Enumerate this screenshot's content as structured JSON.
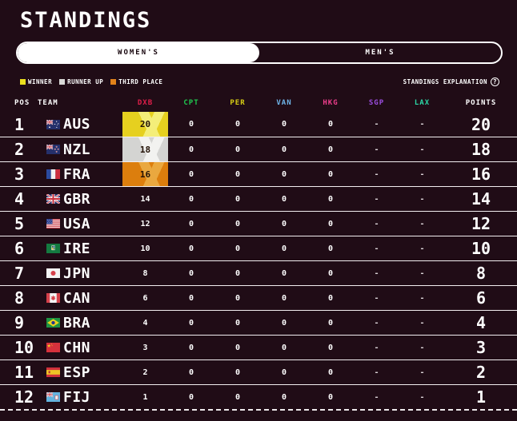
{
  "header": {
    "title": "STANDINGS"
  },
  "tabs": {
    "women": {
      "label": "WOMEN'S",
      "selected": true
    },
    "men": {
      "label": "MEN'S",
      "selected": false
    }
  },
  "legend": [
    {
      "key": "winner",
      "label": "WINNER",
      "color": "#ecdf1e"
    },
    {
      "key": "runner_up",
      "label": "RUNNER UP",
      "color": "#d9d9d7"
    },
    {
      "key": "third_place",
      "label": "THIRD PLACE",
      "color": "#e2821a"
    }
  ],
  "explanation": {
    "label": "STANDINGS EXPLANATION",
    "icon": "?"
  },
  "table": {
    "columns": [
      {
        "key": "pos",
        "label": "POS",
        "color": "#ffffff"
      },
      {
        "key": "team",
        "label": "TEAM",
        "color": "#ffffff"
      },
      {
        "key": "dxb",
        "label": "DXB",
        "color": "#e11e4a"
      },
      {
        "key": "cpt",
        "label": "CPT",
        "color": "#1fca50"
      },
      {
        "key": "per",
        "label": "PER",
        "color": "#d8cf14"
      },
      {
        "key": "van",
        "label": "VAN",
        "color": "#6fb5e9"
      },
      {
        "key": "hkg",
        "label": "HKG",
        "color": "#ef3e8d"
      },
      {
        "key": "sgp",
        "label": "SGP",
        "color": "#9d4ee2"
      },
      {
        "key": "lax",
        "label": "LAX",
        "color": "#2bd8a6"
      },
      {
        "key": "points",
        "label": "POINTS",
        "color": "#ffffff"
      }
    ],
    "highlights": {
      "winner": {
        "base": "#e6d01f",
        "streak": "#f4ee79"
      },
      "runner_up": {
        "base": "#d4d4d2",
        "streak": "#f2f2f0"
      },
      "third_place": {
        "base": "#dc7e0d",
        "streak": "#eaa83f"
      }
    },
    "rows": [
      {
        "pos": "1",
        "team": "AUS",
        "dxb": "20",
        "cpt": "0",
        "per": "0",
        "van": "0",
        "hkg": "0",
        "sgp": "-",
        "lax": "-",
        "points": "20",
        "highlight": "winner"
      },
      {
        "pos": "2",
        "team": "NZL",
        "dxb": "18",
        "cpt": "0",
        "per": "0",
        "van": "0",
        "hkg": "0",
        "sgp": "-",
        "lax": "-",
        "points": "18",
        "highlight": "runner_up"
      },
      {
        "pos": "3",
        "team": "FRA",
        "dxb": "16",
        "cpt": "0",
        "per": "0",
        "van": "0",
        "hkg": "0",
        "sgp": "-",
        "lax": "-",
        "points": "16",
        "highlight": "third_place"
      },
      {
        "pos": "4",
        "team": "GBR",
        "dxb": "14",
        "cpt": "0",
        "per": "0",
        "van": "0",
        "hkg": "0",
        "sgp": "-",
        "lax": "-",
        "points": "14",
        "highlight": null
      },
      {
        "pos": "5",
        "team": "USA",
        "dxb": "12",
        "cpt": "0",
        "per": "0",
        "van": "0",
        "hkg": "0",
        "sgp": "-",
        "lax": "-",
        "points": "12",
        "highlight": null
      },
      {
        "pos": "6",
        "team": "IRE",
        "dxb": "10",
        "cpt": "0",
        "per": "0",
        "van": "0",
        "hkg": "0",
        "sgp": "-",
        "lax": "-",
        "points": "10",
        "highlight": null
      },
      {
        "pos": "7",
        "team": "JPN",
        "dxb": "8",
        "cpt": "0",
        "per": "0",
        "van": "0",
        "hkg": "0",
        "sgp": "-",
        "lax": "-",
        "points": "8",
        "highlight": null
      },
      {
        "pos": "8",
        "team": "CAN",
        "dxb": "6",
        "cpt": "0",
        "per": "0",
        "van": "0",
        "hkg": "0",
        "sgp": "-",
        "lax": "-",
        "points": "6",
        "highlight": null
      },
      {
        "pos": "9",
        "team": "BRA",
        "dxb": "4",
        "cpt": "0",
        "per": "0",
        "van": "0",
        "hkg": "0",
        "sgp": "-",
        "lax": "-",
        "points": "4",
        "highlight": null
      },
      {
        "pos": "10",
        "team": "CHN",
        "dxb": "3",
        "cpt": "0",
        "per": "0",
        "van": "0",
        "hkg": "0",
        "sgp": "-",
        "lax": "-",
        "points": "3",
        "highlight": null
      },
      {
        "pos": "11",
        "team": "ESP",
        "dxb": "2",
        "cpt": "0",
        "per": "0",
        "van": "0",
        "hkg": "0",
        "sgp": "-",
        "lax": "-",
        "points": "2",
        "highlight": null
      },
      {
        "pos": "12",
        "team": "FIJ",
        "dxb": "1",
        "cpt": "0",
        "per": "0",
        "van": "0",
        "hkg": "0",
        "sgp": "-",
        "lax": "-",
        "points": "1",
        "highlight": null
      }
    ]
  }
}
